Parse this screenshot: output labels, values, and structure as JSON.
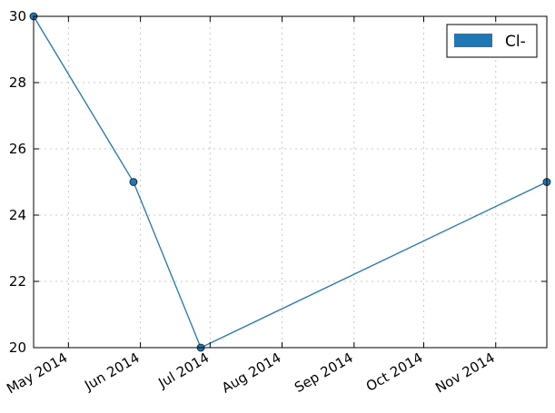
{
  "chart_data": {
    "type": "line",
    "title": "",
    "xlabel": "",
    "ylabel": "",
    "x_axis_type": "date",
    "xlim": [
      "2014-04-16",
      "2014-11-23"
    ],
    "ylim": [
      20,
      30
    ],
    "y_ticks": [
      20,
      22,
      24,
      26,
      28,
      30
    ],
    "x_ticks": [
      {
        "date": "2014-05-01",
        "label": "May 2014"
      },
      {
        "date": "2014-06-01",
        "label": "Jun 2014"
      },
      {
        "date": "2014-07-01",
        "label": "Jul 2014"
      },
      {
        "date": "2014-08-01",
        "label": "Aug 2014"
      },
      {
        "date": "2014-09-01",
        "label": "Sep 2014"
      },
      {
        "date": "2014-10-01",
        "label": "Oct 2014"
      },
      {
        "date": "2014-11-01",
        "label": "Nov 2014"
      }
    ],
    "grid": true,
    "legend_position": "top-right",
    "series": [
      {
        "name": "Cl-",
        "color": "#1f77b4",
        "points": [
          {
            "x": "2014-04-16",
            "y": 30
          },
          {
            "x": "2014-05-29",
            "y": 25
          },
          {
            "x": "2014-06-27",
            "y": 20
          },
          {
            "x": "2014-11-23",
            "y": 25
          }
        ]
      }
    ]
  }
}
